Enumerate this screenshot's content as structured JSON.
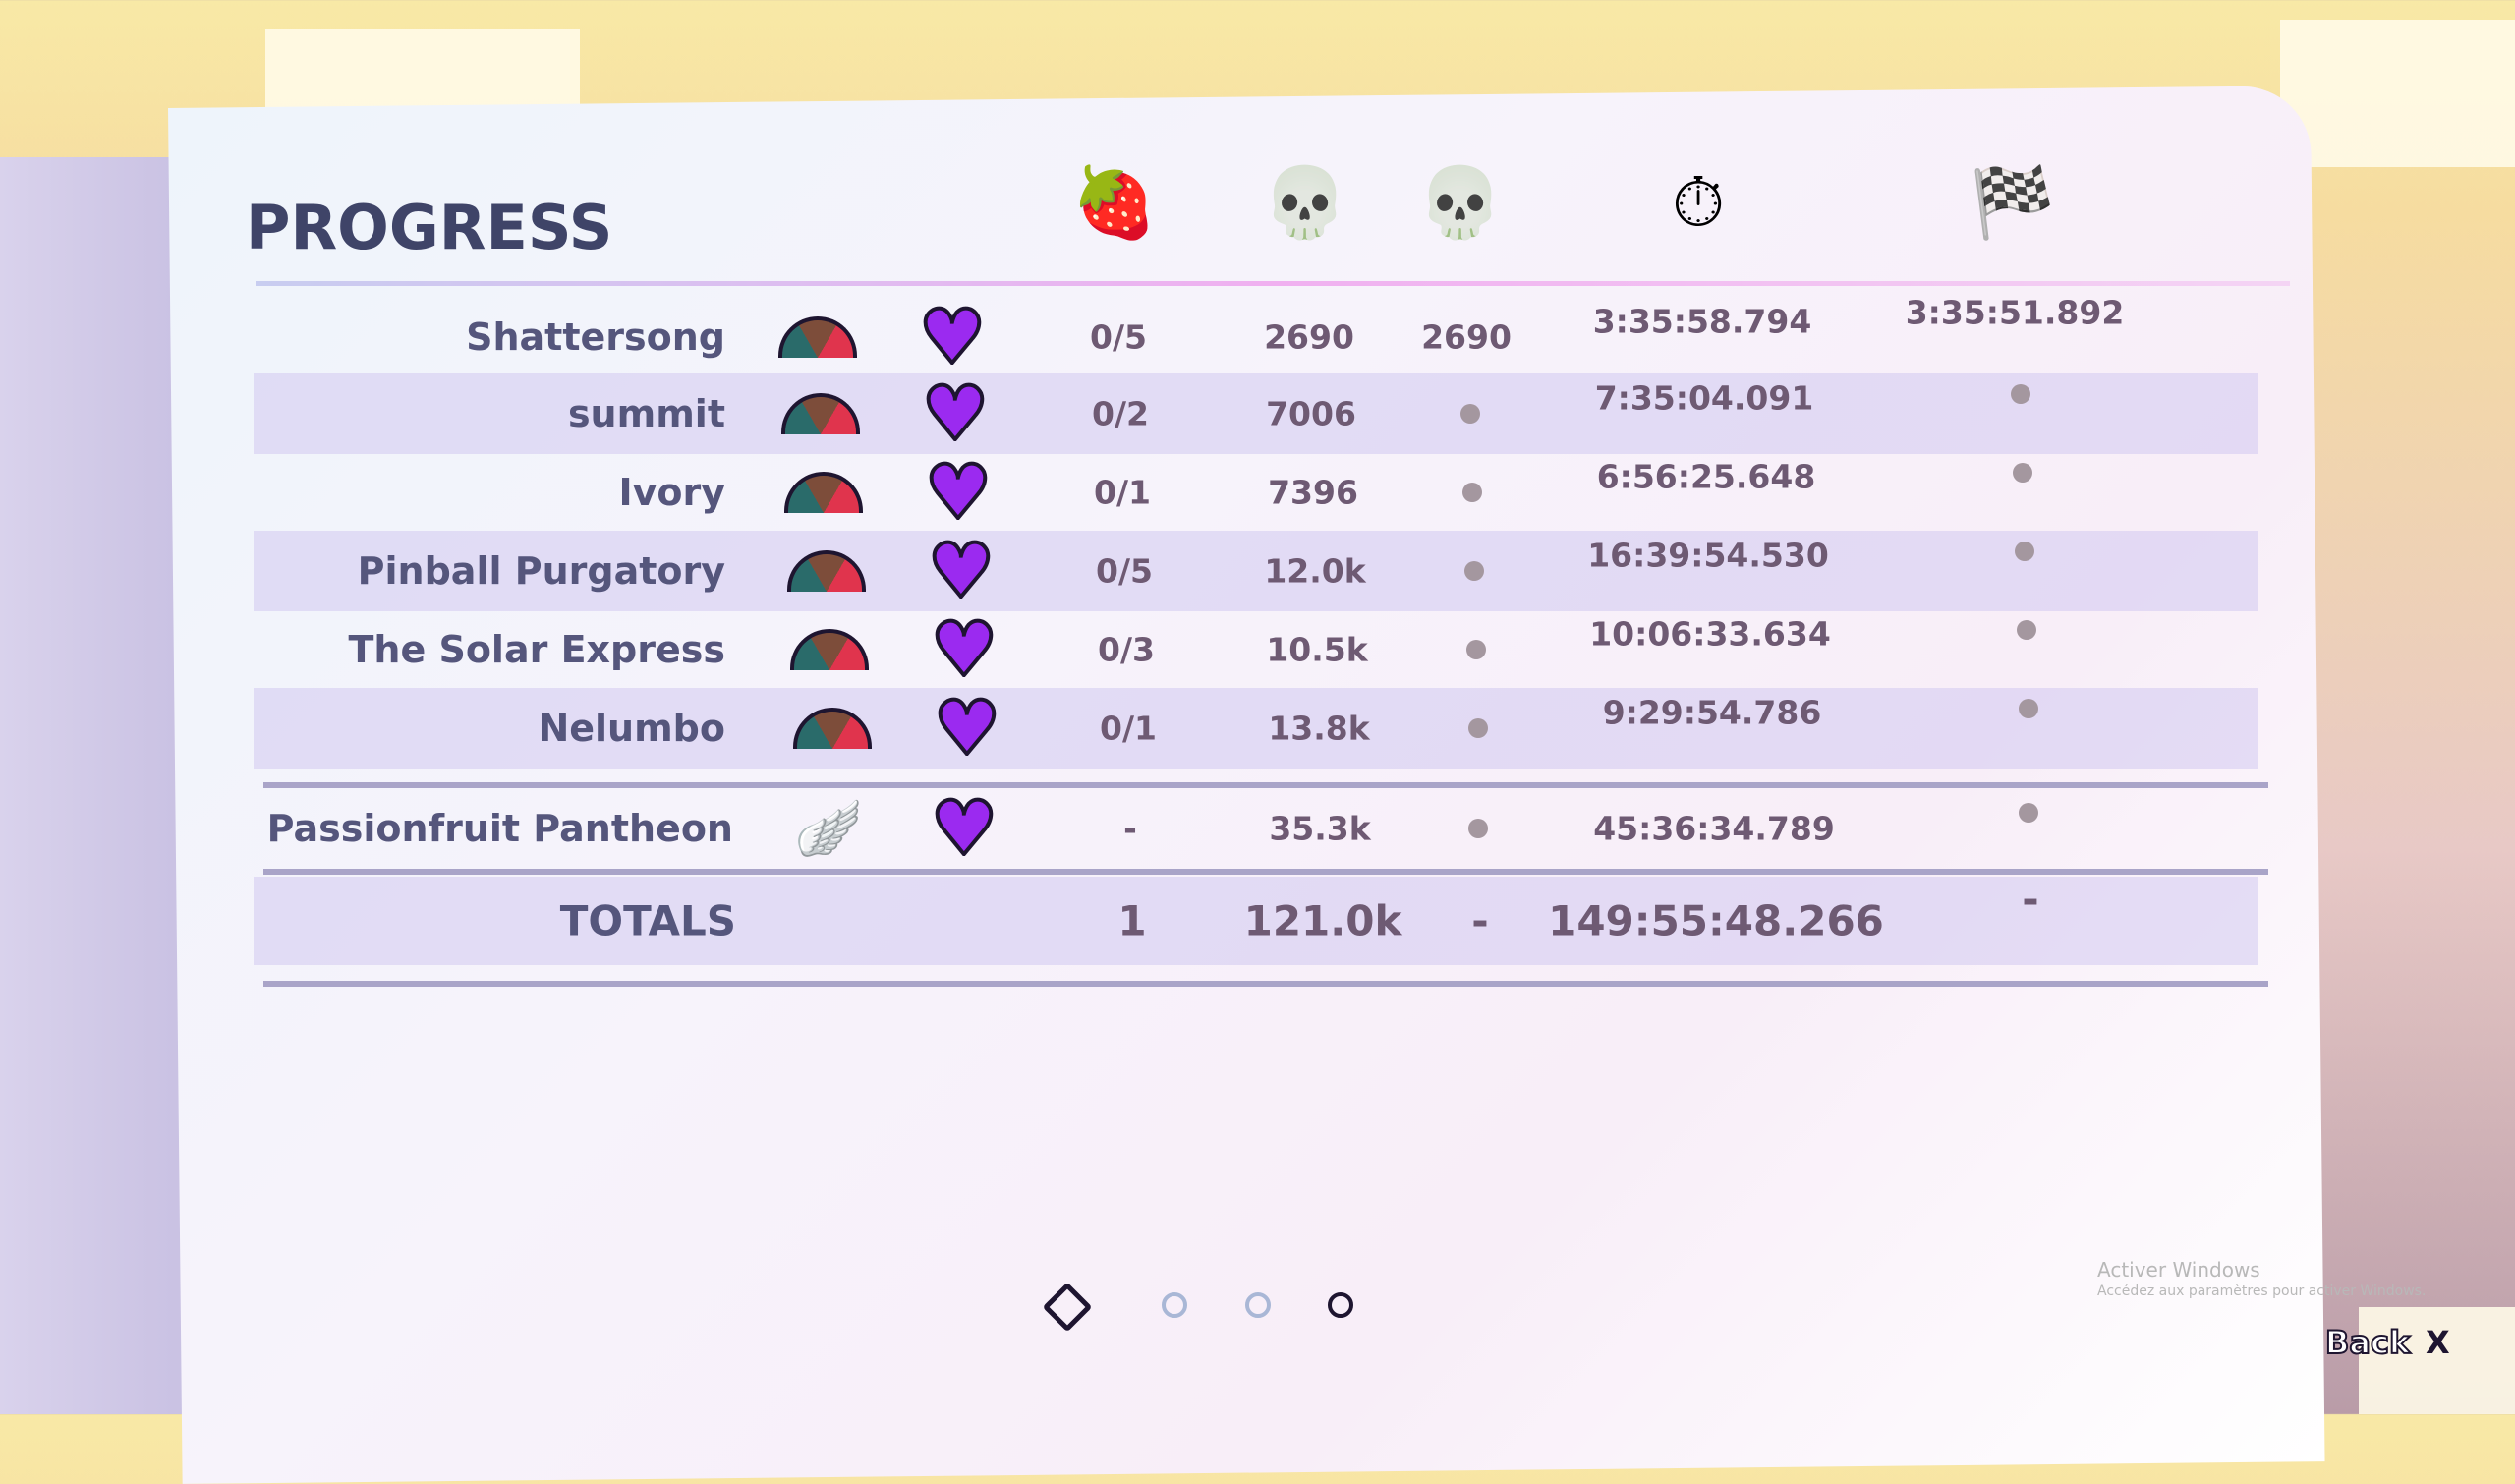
{
  "title": "PROGRESS",
  "columns": [
    {
      "icon": "strawberry-icon",
      "glyph": "🍓"
    },
    {
      "icon": "death-skull-icon",
      "glyph": "💀"
    },
    {
      "icon": "death-skull-check-icon",
      "glyph": "💀"
    },
    {
      "icon": "stopwatch-icon",
      "glyph": "⏱"
    },
    {
      "icon": "checkered-flag-icon",
      "glyph": "🏁"
    }
  ],
  "rows": [
    {
      "name": "Shattersong",
      "strawberries": "0/5",
      "deaths": "2690",
      "deaths2": "2690",
      "time": "3:35:58.794",
      "best": "3:35:51.892"
    },
    {
      "name": "summit",
      "strawberries": "0/2",
      "deaths": "7006",
      "deaths2": "",
      "time": "7:35:04.091",
      "best": ""
    },
    {
      "name": "Ivory",
      "strawberries": "0/1",
      "deaths": "7396",
      "deaths2": "",
      "time": "6:56:25.648",
      "best": ""
    },
    {
      "name": "Pinball Purgatory",
      "strawberries": "0/5",
      "deaths": "12.0k",
      "deaths2": "",
      "time": "16:39:54.530",
      "best": ""
    },
    {
      "name": "The Solar Express",
      "strawberries": "0/3",
      "deaths": "10.5k",
      "deaths2": "",
      "time": "10:06:33.634",
      "best": ""
    },
    {
      "name": "Nelumbo",
      "strawberries": "0/1",
      "deaths": "13.8k",
      "deaths2": "",
      "time": "9:29:54.786",
      "best": ""
    }
  ],
  "heartside": {
    "name": "Passionfruit Pantheon",
    "strawberries": "-",
    "deaths": "35.3k",
    "time": "45:36:34.789"
  },
  "totals": {
    "label": "TOTALS",
    "strawberries": "1",
    "deaths": "121.0k",
    "deaths2": "-",
    "time": "149:55:48.266",
    "best": "-"
  },
  "pages": {
    "count": 3,
    "current": 3
  },
  "watermark": {
    "line1": "Activer Windows",
    "line2": "Accédez aux paramètres pour activer Windows."
  },
  "back": {
    "label": "Back",
    "key": "X"
  },
  "colors": {
    "heart": "#9b2af0",
    "title": "#3f4468",
    "text": "#6e5a73"
  }
}
